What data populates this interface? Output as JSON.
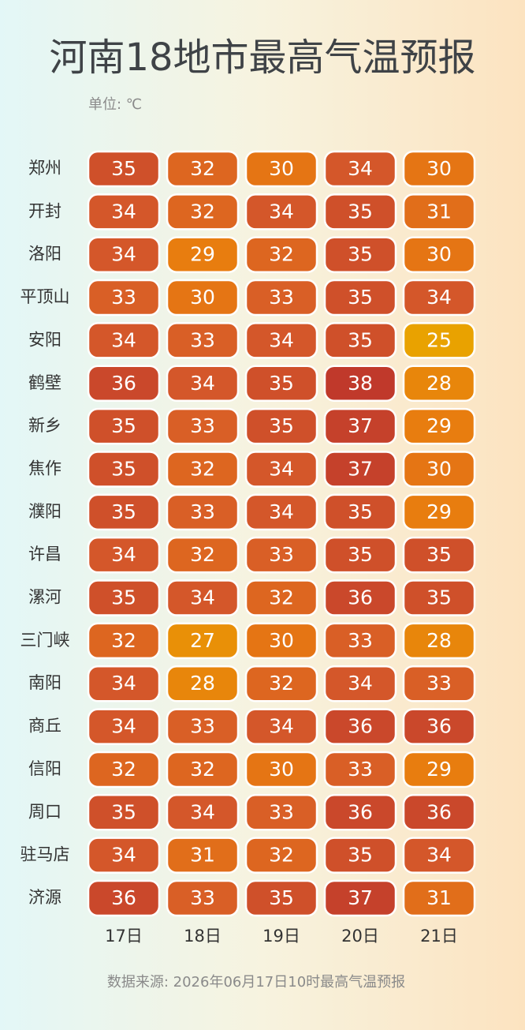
{
  "chart_data": {
    "type": "heatmap",
    "title": "河南18地市最高气温预报",
    "unit": "单位: ℃",
    "source": "数据来源: 2026年06月17日10时最高气温预报",
    "x": [
      "17日",
      "18日",
      "19日",
      "20日",
      "21日"
    ],
    "y": [
      "郑州",
      "开封",
      "洛阳",
      "平顶山",
      "安阳",
      "鹤壁",
      "新乡",
      "焦作",
      "濮阳",
      "许昌",
      "漯河",
      "三门峡",
      "南阳",
      "商丘",
      "信阳",
      "周口",
      "驻马店",
      "济源"
    ],
    "values": [
      [
        35,
        32,
        30,
        34,
        30
      ],
      [
        34,
        32,
        34,
        35,
        31
      ],
      [
        34,
        29,
        32,
        35,
        30
      ],
      [
        33,
        30,
        33,
        35,
        34
      ],
      [
        34,
        33,
        34,
        35,
        25
      ],
      [
        36,
        34,
        35,
        38,
        28
      ],
      [
        35,
        33,
        35,
        37,
        29
      ],
      [
        35,
        32,
        34,
        37,
        30
      ],
      [
        35,
        33,
        34,
        35,
        29
      ],
      [
        34,
        32,
        33,
        35,
        35
      ],
      [
        35,
        34,
        32,
        36,
        35
      ],
      [
        32,
        27,
        30,
        33,
        28
      ],
      [
        34,
        28,
        32,
        34,
        33
      ],
      [
        34,
        33,
        34,
        36,
        36
      ],
      [
        32,
        32,
        30,
        33,
        29
      ],
      [
        35,
        34,
        33,
        36,
        36
      ],
      [
        34,
        31,
        32,
        35,
        34
      ],
      [
        36,
        33,
        35,
        37,
        31
      ]
    ],
    "colorscale": [
      "#e9a200",
      "#e87a10",
      "#d65a2a",
      "#c0392b"
    ]
  }
}
